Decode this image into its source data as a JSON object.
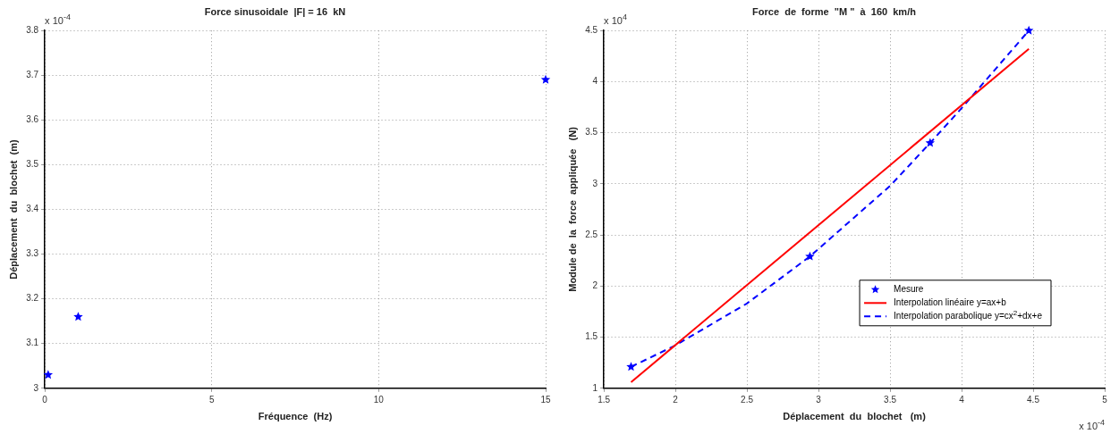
{
  "chart_data": [
    {
      "type": "scatter",
      "title": "Force sinusoidale  |F| = 16  kN",
      "xlabel": "Fréquence  (Hz)",
      "ylabel": "Déplacement  du  blochet  (m)",
      "x": [
        0.1,
        1,
        15
      ],
      "series": [
        {
          "color": "#0000ff",
          "marker": "star",
          "values": [
            3.03,
            3.16,
            3.69
          ]
        }
      ],
      "xlim": [
        0,
        15
      ],
      "xticks": [
        0,
        5,
        10,
        15
      ],
      "ylim": [
        3,
        3.8
      ],
      "yticks": [
        3,
        3.1,
        3.2,
        3.3,
        3.4,
        3.5,
        3.6,
        3.7,
        3.8
      ],
      "grid": true,
      "annotations": [
        "x 10$^{-4}$"
      ]
    },
    {
      "type": "scatter",
      "title": "Force  de  forme  \"M \"  à  160  km/h",
      "xlabel": "Déplacement  du  blochet   (m)",
      "ylabel": "Module de  la  force  appliquée   (N)",
      "series": [
        {
          "name": "Mesure",
          "type": "scatter",
          "color": "#0000ff",
          "marker": "star",
          "x": [
            1.69,
            2.94,
            3.78,
            4.47
          ],
          "values": [
            1.21,
            2.29,
            3.4,
            4.5
          ]
        },
        {
          "name": "Interpolation linéaire y=ax+b",
          "type": "line",
          "color": "#ff0000",
          "marker": "none",
          "line_style": "solid",
          "x": [
            1.69,
            4.47
          ],
          "values": [
            1.06,
            4.32
          ]
        },
        {
          "name": "Interpolation parabolique y=cx$^{2}$+dx+e",
          "type": "line",
          "color": "#0000ff",
          "marker": "none",
          "line_style": "dashed",
          "x": [
            1.69,
            2.0,
            2.5,
            2.94,
            3.5,
            3.78,
            4.0,
            4.47
          ],
          "values": [
            1.21,
            1.42,
            1.83,
            2.29,
            2.98,
            3.4,
            3.74,
            4.5
          ]
        }
      ],
      "xlim": [
        1.5,
        5
      ],
      "xticks": [
        1.5,
        2,
        2.5,
        3,
        3.5,
        4,
        4.5,
        5
      ],
      "ylim": [
        1,
        4.5
      ],
      "yticks": [
        1,
        1.5,
        2,
        2.5,
        3,
        3.5,
        4,
        4.5
      ],
      "grid": true,
      "legend": "bottom right",
      "annotations": [
        "x 10$^{4}$",
        "x 10$^{-4}$"
      ]
    }
  ]
}
